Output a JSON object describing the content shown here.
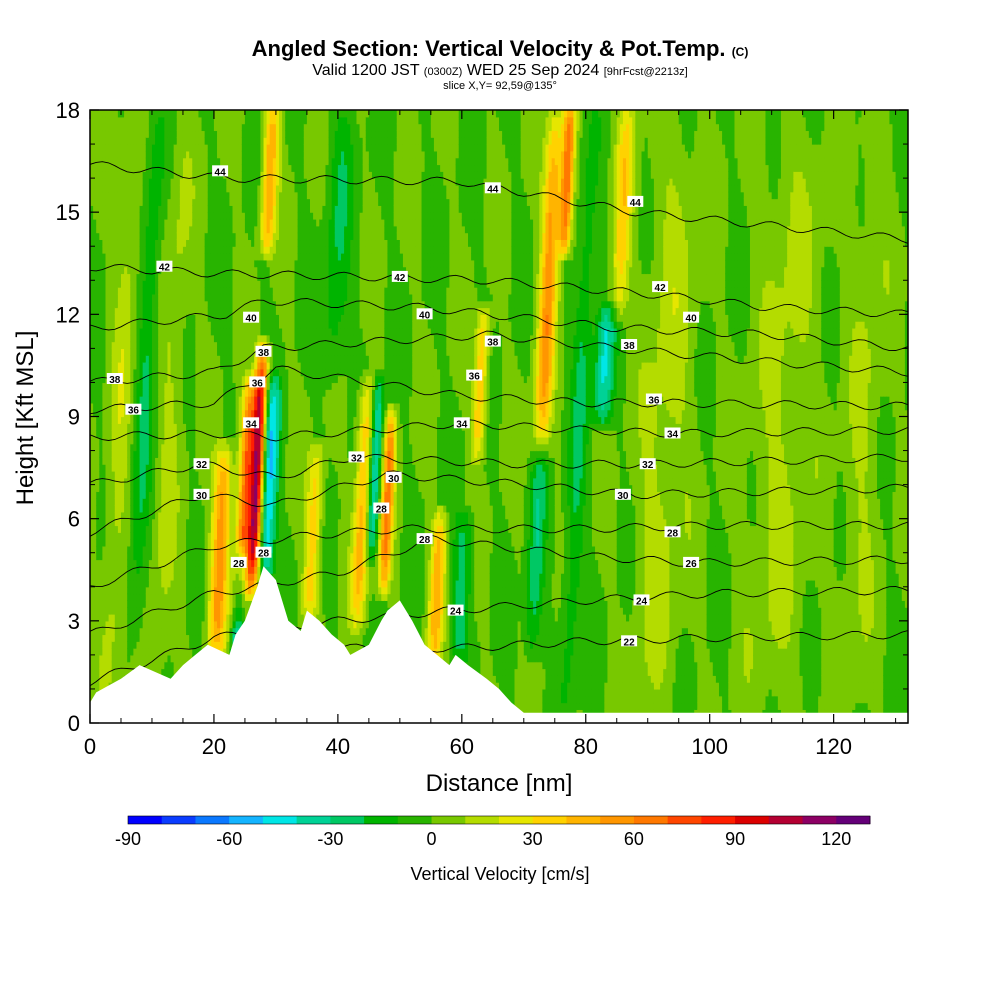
{
  "header": {
    "title": "Angled Section: Vertical Velocity & Pot.Temp.",
    "title_mark": "(C)",
    "valid_prefix": "Valid 1200 JST",
    "valid_utc": "(0300Z)",
    "valid_date": "WED 25 Sep 2024",
    "forecast": "[9hrFcst@2213z]",
    "slice": "slice X,Y= 92,59@135°"
  },
  "chart_data": {
    "type": "heatmap",
    "xlabel": "Distance [nm]",
    "ylabel": "Height [Kft MSL]",
    "xlim": [
      0,
      132
    ],
    "ylim": [
      0,
      18
    ],
    "x_ticks": [
      0,
      20,
      40,
      60,
      80,
      100,
      120
    ],
    "y_ticks": [
      0,
      3,
      6,
      9,
      12,
      15,
      18
    ],
    "colorbar": {
      "title": "Vertical Velocity [cm/s]",
      "range": [
        -90,
        130
      ],
      "ticks": [
        -90,
        -60,
        -30,
        0,
        30,
        60,
        90,
        120
      ],
      "colors": [
        "#0000ff",
        "#0a3cff",
        "#0a78ff",
        "#14b4ff",
        "#00e6e6",
        "#00d296",
        "#00c864",
        "#00b400",
        "#28b400",
        "#78c800",
        "#b4dc00",
        "#e6e600",
        "#ffd200",
        "#ffb400",
        "#ff9600",
        "#ff7800",
        "#ff4600",
        "#ff1e00",
        "#dc0000",
        "#b40032",
        "#8c0064",
        "#640078"
      ]
    },
    "background_value": 0,
    "updraft_bands": [
      {
        "x": 5,
        "ybot": 0,
        "ytop": 18,
        "width": 1.8,
        "peak": 15
      },
      {
        "x": 13,
        "ybot": 0,
        "ytop": 18,
        "width": 2.0,
        "peak": 12
      },
      {
        "x": 21,
        "ybot": 2,
        "ytop": 8,
        "width": 1.5,
        "peak": 55
      },
      {
        "x": 25,
        "ybot": 3,
        "ytop": 10,
        "width": 1.2,
        "peak": 70
      },
      {
        "x": 27,
        "ybot": 4,
        "ytop": 11,
        "width": 1.0,
        "peak": 105
      },
      {
        "x": 29,
        "ybot": 14,
        "ytop": 18,
        "width": 1.2,
        "peak": 50
      },
      {
        "x": 36,
        "ybot": 3,
        "ytop": 8,
        "width": 1.3,
        "peak": 35
      },
      {
        "x": 44,
        "ybot": 3,
        "ytop": 10,
        "width": 1.3,
        "peak": 45
      },
      {
        "x": 48,
        "ybot": 4,
        "ytop": 9,
        "width": 1.0,
        "peak": 60
      },
      {
        "x": 56,
        "ybot": 2,
        "ytop": 6,
        "width": 1.2,
        "peak": 45
      },
      {
        "x": 63,
        "ybot": 8,
        "ytop": 12,
        "width": 1.1,
        "peak": 40
      },
      {
        "x": 74,
        "ybot": 8,
        "ytop": 18,
        "width": 1.4,
        "peak": 55
      },
      {
        "x": 77,
        "ybot": 14,
        "ytop": 18,
        "width": 1.0,
        "peak": 70
      },
      {
        "x": 86,
        "ybot": 12,
        "ytop": 18,
        "width": 1.4,
        "peak": 35
      },
      {
        "x": 93,
        "ybot": 0,
        "ytop": 18,
        "width": 4.0,
        "peak": 14
      },
      {
        "x": 112,
        "ybot": 0,
        "ytop": 18,
        "width": 5.0,
        "peak": 12
      },
      {
        "x": 125,
        "ybot": 0,
        "ytop": 18,
        "width": 3.0,
        "peak": 10
      }
    ],
    "downdraft_bands": [
      {
        "x": 24,
        "ybot": 1,
        "ytop": 5,
        "width": 1.0,
        "peak": -55
      },
      {
        "x": 29,
        "ybot": 4,
        "ytop": 10,
        "width": 1.3,
        "peak": -50
      },
      {
        "x": 46,
        "ybot": 5,
        "ytop": 10,
        "width": 1.0,
        "peak": -45
      },
      {
        "x": 60,
        "ybot": 2,
        "ytop": 6,
        "width": 1.5,
        "peak": -25
      },
      {
        "x": 72,
        "ybot": 2,
        "ytop": 8,
        "width": 1.3,
        "peak": -25
      },
      {
        "x": 83,
        "ybot": 9,
        "ytop": 12,
        "width": 1.5,
        "peak": -40
      },
      {
        "x": 79,
        "ybot": 0,
        "ytop": 18,
        "width": 1.5,
        "peak": -20
      },
      {
        "x": 9,
        "ybot": 2,
        "ytop": 18,
        "width": 1.5,
        "peak": -20
      },
      {
        "x": 40,
        "ybot": 10,
        "ytop": 18,
        "width": 2.0,
        "peak": -18
      }
    ],
    "terrain": [
      {
        "x": 0,
        "h": 0.6
      },
      {
        "x": 1,
        "h": 0.9
      },
      {
        "x": 5,
        "h": 1.3
      },
      {
        "x": 8,
        "h": 1.7
      },
      {
        "x": 13,
        "h": 1.3
      },
      {
        "x": 15,
        "h": 1.7
      },
      {
        "x": 17,
        "h": 2.0
      },
      {
        "x": 19,
        "h": 2.3
      },
      {
        "x": 22.5,
        "h": 2.0
      },
      {
        "x": 23.5,
        "h": 2.6
      },
      {
        "x": 25,
        "h": 3.0
      },
      {
        "x": 27,
        "h": 4.0
      },
      {
        "x": 28,
        "h": 4.6
      },
      {
        "x": 30,
        "h": 4.2
      },
      {
        "x": 32,
        "h": 3.0
      },
      {
        "x": 34,
        "h": 2.7
      },
      {
        "x": 35,
        "h": 3.3
      },
      {
        "x": 37,
        "h": 3.0
      },
      {
        "x": 39,
        "h": 2.6
      },
      {
        "x": 41,
        "h": 2.3
      },
      {
        "x": 42,
        "h": 2.0
      },
      {
        "x": 45,
        "h": 2.3
      },
      {
        "x": 47,
        "h": 3.0
      },
      {
        "x": 48,
        "h": 3.3
      },
      {
        "x": 50,
        "h": 3.6
      },
      {
        "x": 52,
        "h": 3.0
      },
      {
        "x": 54,
        "h": 2.3
      },
      {
        "x": 56,
        "h": 2.0
      },
      {
        "x": 58,
        "h": 1.7
      },
      {
        "x": 59,
        "h": 2.0
      },
      {
        "x": 61,
        "h": 1.7
      },
      {
        "x": 64,
        "h": 1.3
      },
      {
        "x": 66,
        "h": 1.0
      },
      {
        "x": 68,
        "h": 0.6
      },
      {
        "x": 70,
        "h": 0.3
      },
      {
        "x": 132,
        "h": 0.3
      }
    ],
    "isentropes": [
      {
        "theta": 22,
        "heights": [
          [
            0,
            0.6
          ],
          [
            20,
            1.6
          ],
          [
            40,
            2.2
          ],
          [
            60,
            2.2
          ],
          [
            80,
            2.4
          ],
          [
            100,
            2.5
          ],
          [
            132,
            2.6
          ]
        ]
      },
      {
        "theta": 24,
        "heights": [
          [
            0,
            1.2
          ],
          [
            20,
            2.5
          ],
          [
            40,
            3.0
          ],
          [
            58,
            3.3
          ],
          [
            80,
            3.6
          ],
          [
            100,
            3.8
          ],
          [
            132,
            3.9
          ]
        ]
      },
      {
        "theta": 26,
        "heights": [
          [
            0,
            2.6
          ],
          [
            20,
            3.8
          ],
          [
            40,
            4.4
          ],
          [
            55,
            5.4
          ],
          [
            80,
            4.9
          ],
          [
            97,
            4.7
          ],
          [
            132,
            4.8
          ]
        ]
      },
      {
        "theta": 28,
        "heights": [
          [
            0,
            4.0
          ],
          [
            20,
            5.2
          ],
          [
            35,
            5.5
          ],
          [
            50,
            5.7
          ],
          [
            80,
            5.7
          ],
          [
            100,
            5.8
          ],
          [
            132,
            5.8
          ]
        ]
      },
      {
        "theta": 30,
        "heights": [
          [
            0,
            5.6
          ],
          [
            18,
            6.7
          ],
          [
            30,
            6.4
          ],
          [
            48,
            7.3
          ],
          [
            70,
            7.0
          ],
          [
            88,
            6.7
          ],
          [
            132,
            6.9
          ]
        ]
      },
      {
        "theta": 32,
        "heights": [
          [
            0,
            7.0
          ],
          [
            18,
            7.6
          ],
          [
            30,
            7.2
          ],
          [
            42,
            7.8
          ],
          [
            70,
            7.6
          ],
          [
            90,
            7.6
          ],
          [
            132,
            7.8
          ]
        ]
      },
      {
        "theta": 34,
        "heights": [
          [
            0,
            8.4
          ],
          [
            20,
            8.5
          ],
          [
            30,
            8.4
          ],
          [
            60,
            8.8
          ],
          [
            80,
            8.6
          ],
          [
            94,
            8.5
          ],
          [
            132,
            8.6
          ]
        ]
      },
      {
        "theta": 36,
        "heights": [
          [
            0,
            9.2
          ],
          [
            20,
            9.4
          ],
          [
            30,
            10.4
          ],
          [
            60,
            9.6
          ],
          [
            80,
            9.4
          ],
          [
            92,
            9.4
          ],
          [
            132,
            9.3
          ]
        ]
      },
      {
        "theta": 38,
        "heights": [
          [
            0,
            10.0
          ],
          [
            20,
            10.3
          ],
          [
            28,
            11.0
          ],
          [
            64,
            11.4
          ],
          [
            85,
            11.0
          ],
          [
            110,
            10.6
          ],
          [
            132,
            10.3
          ]
        ]
      },
      {
        "theta": 40,
        "heights": [
          [
            0,
            11.6
          ],
          [
            22,
            12.0
          ],
          [
            28,
            12.4
          ],
          [
            54,
            12.2
          ],
          [
            85,
            11.6
          ],
          [
            110,
            11.4
          ],
          [
            132,
            11.0
          ]
        ]
      },
      {
        "theta": 42,
        "heights": [
          [
            0,
            13.4
          ],
          [
            20,
            13.2
          ],
          [
            45,
            13.1
          ],
          [
            64,
            13.0
          ],
          [
            90,
            12.6
          ],
          [
            110,
            12.2
          ],
          [
            132,
            12.0
          ]
        ]
      },
      {
        "theta": 44,
        "heights": [
          [
            0,
            16.4
          ],
          [
            22,
            16.0
          ],
          [
            60,
            15.9
          ],
          [
            88,
            15.0
          ],
          [
            110,
            14.6
          ],
          [
            132,
            14.2
          ]
        ]
      }
    ],
    "isentrope_labels": [
      {
        "text": "44",
        "x": 21,
        "y": 16.2
      },
      {
        "text": "44",
        "x": 65,
        "y": 15.7
      },
      {
        "text": "44",
        "x": 88,
        "y": 15.3
      },
      {
        "text": "42",
        "x": 12,
        "y": 13.4
      },
      {
        "text": "42",
        "x": 50,
        "y": 13.1
      },
      {
        "text": "42",
        "x": 92,
        "y": 12.8
      },
      {
        "text": "40",
        "x": 26,
        "y": 11.9
      },
      {
        "text": "40",
        "x": 54,
        "y": 12.0
      },
      {
        "text": "40",
        "x": 97,
        "y": 11.9
      },
      {
        "text": "38",
        "x": 4,
        "y": 10.1
      },
      {
        "text": "38",
        "x": 28,
        "y": 10.9
      },
      {
        "text": "38",
        "x": 65,
        "y": 11.2
      },
      {
        "text": "38",
        "x": 87,
        "y": 11.1
      },
      {
        "text": "36",
        "x": 7,
        "y": 9.2
      },
      {
        "text": "36",
        "x": 27,
        "y": 10.0
      },
      {
        "text": "36",
        "x": 62,
        "y": 10.2
      },
      {
        "text": "36",
        "x": 91,
        "y": 9.5
      },
      {
        "text": "34",
        "x": 26,
        "y": 8.8
      },
      {
        "text": "34",
        "x": 60,
        "y": 8.8
      },
      {
        "text": "34",
        "x": 94,
        "y": 8.5
      },
      {
        "text": "32",
        "x": 18,
        "y": 7.6
      },
      {
        "text": "32",
        "x": 43,
        "y": 7.8
      },
      {
        "text": "32",
        "x": 90,
        "y": 7.6
      },
      {
        "text": "30",
        "x": 18,
        "y": 6.7
      },
      {
        "text": "30",
        "x": 49,
        "y": 7.2
      },
      {
        "text": "30",
        "x": 86,
        "y": 6.7
      },
      {
        "text": "28",
        "x": 47,
        "y": 6.3
      },
      {
        "text": "28",
        "x": 24,
        "y": 4.7
      },
      {
        "text": "28",
        "x": 28,
        "y": 5.0
      },
      {
        "text": "28",
        "x": 54,
        "y": 5.4
      },
      {
        "text": "28",
        "x": 94,
        "y": 5.6
      },
      {
        "text": "26",
        "x": 97,
        "y": 4.7
      },
      {
        "text": "24",
        "x": 59,
        "y": 3.3
      },
      {
        "text": "24",
        "x": 89,
        "y": 3.6
      },
      {
        "text": "22",
        "x": 87,
        "y": 2.4
      }
    ]
  }
}
